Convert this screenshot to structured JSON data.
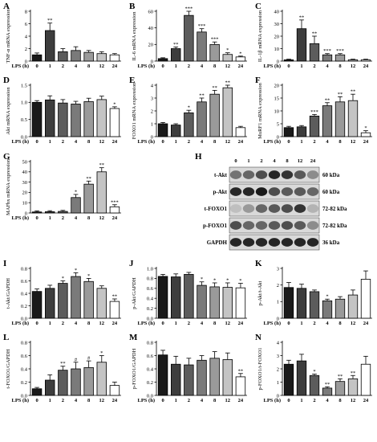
{
  "figure": {
    "categories": [
      "0",
      "1",
      "2",
      "4",
      "8",
      "12",
      "24"
    ],
    "xlabel": "LPS (h)",
    "bar_colors": [
      "#1a1a1a",
      "#3d3d3d",
      "#5c5c5c",
      "#7a7a7a",
      "#9a9a9a",
      "#c4c4c4",
      "#ffffff"
    ]
  },
  "chart_data": [
    {
      "id": "A",
      "type": "bar",
      "ylabel": "TNF-α mRNA expression",
      "ylim": [
        0,
        8
      ],
      "yticks": [
        0,
        2,
        4,
        6,
        8
      ],
      "categories": [
        "0",
        "1",
        "2",
        "4",
        "8",
        "12",
        "24"
      ],
      "values": [
        1.0,
        4.9,
        1.5,
        1.7,
        1.4,
        1.2,
        1.0
      ],
      "errors": [
        0.3,
        1.2,
        0.5,
        0.6,
        0.3,
        0.3,
        0.2
      ],
      "sig": [
        "",
        "**",
        "",
        "",
        "",
        "",
        ""
      ]
    },
    {
      "id": "B",
      "type": "bar",
      "ylabel": "IL-6 mRNA expression",
      "ylim": [
        0,
        60
      ],
      "yticks": [
        0,
        20,
        40,
        60
      ],
      "categories": [
        "0",
        "1",
        "2",
        "4",
        "8",
        "12",
        "24"
      ],
      "values": [
        3,
        15,
        55,
        35,
        20,
        8,
        5
      ],
      "errors": [
        1,
        2,
        5,
        4,
        3,
        2,
        1
      ],
      "sig": [
        "",
        "**",
        "***",
        "***",
        "***",
        "*",
        "*"
      ]
    },
    {
      "id": "C",
      "type": "bar",
      "ylabel": "IL-1β mRNA expression",
      "ylim": [
        0,
        40
      ],
      "yticks": [
        0,
        10,
        20,
        30,
        40
      ],
      "categories": [
        "0",
        "1",
        "2",
        "4",
        "8",
        "12",
        "24"
      ],
      "values": [
        1,
        26,
        14,
        5,
        5,
        1,
        1
      ],
      "errors": [
        0.5,
        7,
        6,
        1,
        1,
        0.5,
        0.5
      ],
      "sig": [
        "",
        "**",
        "**",
        "***",
        "***",
        "",
        ""
      ]
    },
    {
      "id": "D",
      "type": "bar",
      "ylabel": "Akt mRNA expression",
      "ylim": [
        0,
        1.5
      ],
      "yticks": [
        0.0,
        0.5,
        1.0,
        1.5
      ],
      "categories": [
        "0",
        "1",
        "2",
        "4",
        "8",
        "12",
        "24"
      ],
      "values": [
        1.0,
        1.07,
        0.98,
        0.95,
        1.02,
        1.08,
        0.82
      ],
      "errors": [
        0.05,
        0.12,
        0.1,
        0.08,
        0.1,
        0.1,
        0.05
      ],
      "sig": [
        "",
        "",
        "",
        "",
        "",
        "",
        "*"
      ]
    },
    {
      "id": "E",
      "type": "bar",
      "ylabel": "FOXO1 mRNA expression",
      "ylim": [
        0,
        4
      ],
      "yticks": [
        0,
        1,
        2,
        3,
        4
      ],
      "categories": [
        "0",
        "1",
        "2",
        "4",
        "8",
        "12",
        "24"
      ],
      "values": [
        1.0,
        0.9,
        1.85,
        2.7,
        3.3,
        3.8,
        0.7
      ],
      "errors": [
        0.1,
        0.1,
        0.2,
        0.3,
        0.3,
        0.2,
        0.1
      ],
      "sig": [
        "",
        "",
        "*",
        "**",
        "**",
        "**",
        ""
      ]
    },
    {
      "id": "F",
      "type": "bar",
      "ylabel": "MuRF1 mRNA expression",
      "ylim": [
        0,
        20
      ],
      "yticks": [
        0,
        5,
        10,
        15,
        20
      ],
      "categories": [
        "0",
        "1",
        "2",
        "4",
        "8",
        "12",
        "24"
      ],
      "values": [
        3.5,
        3.8,
        8,
        12,
        13.5,
        14,
        1.5
      ],
      "errors": [
        0.5,
        0.5,
        0.6,
        1.2,
        2,
        2.5,
        0.8
      ],
      "sig": [
        "",
        "",
        "***",
        "**",
        "**",
        "**",
        "*"
      ]
    },
    {
      "id": "G",
      "type": "bar",
      "ylabel": "MAFbx mRNA expression",
      "ylim": [
        0,
        50
      ],
      "yticks": [
        0,
        10,
        20,
        30,
        40,
        50
      ],
      "categories": [
        "0",
        "1",
        "2",
        "4",
        "8",
        "12",
        "24"
      ],
      "values": [
        1,
        1.2,
        1.5,
        15,
        28,
        40,
        6
      ],
      "errors": [
        1,
        1,
        1,
        3,
        3,
        4,
        2
      ],
      "sig": [
        "",
        "",
        "",
        "*",
        "**",
        "**",
        "***"
      ]
    },
    {
      "id": "I",
      "type": "bar",
      "ylabel": "t-Akt/GAPDH",
      "ylim": [
        0,
        0.8
      ],
      "yticks": [
        0.0,
        0.2,
        0.4,
        0.6,
        0.8
      ],
      "categories": [
        "0",
        "1",
        "2",
        "4",
        "8",
        "12",
        "24"
      ],
      "values": [
        0.43,
        0.48,
        0.56,
        0.67,
        0.59,
        0.48,
        0.27
      ],
      "errors": [
        0.04,
        0.05,
        0.04,
        0.06,
        0.05,
        0.04,
        0.04
      ],
      "sig": [
        "",
        "",
        "*",
        "*",
        "*",
        "",
        "**"
      ]
    },
    {
      "id": "J",
      "type": "bar",
      "ylabel": "p-Akt/GAPDH",
      "ylim": [
        0,
        1.0
      ],
      "yticks": [
        0.0,
        0.2,
        0.4,
        0.6,
        0.8,
        1.0
      ],
      "categories": [
        "0",
        "1",
        "2",
        "4",
        "8",
        "12",
        "24"
      ],
      "values": [
        0.84,
        0.83,
        0.88,
        0.66,
        0.63,
        0.62,
        0.61
      ],
      "errors": [
        0.04,
        0.06,
        0.04,
        0.07,
        0.08,
        0.09,
        0.09
      ],
      "sig": [
        "",
        "",
        "",
        "*",
        "*",
        "*",
        "*"
      ]
    },
    {
      "id": "K",
      "type": "bar",
      "ylabel": "p-Akt/t-Akt",
      "ylim": [
        0,
        3
      ],
      "yticks": [
        0,
        1,
        2,
        3
      ],
      "categories": [
        "0",
        "1",
        "2",
        "4",
        "8",
        "12",
        "24"
      ],
      "values": [
        1.85,
        1.8,
        1.6,
        1.05,
        1.15,
        1.4,
        2.35
      ],
      "errors": [
        0.3,
        0.25,
        0.1,
        0.1,
        0.15,
        0.3,
        0.5
      ],
      "sig": [
        "",
        "",
        "",
        "*",
        "",
        "",
        ""
      ]
    },
    {
      "id": "L",
      "type": "bar",
      "ylabel": "t-FOXO1/GAPDH",
      "ylim": [
        0,
        0.8
      ],
      "yticks": [
        0.0,
        0.2,
        0.4,
        0.6,
        0.8
      ],
      "categories": [
        "0",
        "1",
        "2",
        "4",
        "8",
        "12",
        "24"
      ],
      "values": [
        0.1,
        0.23,
        0.38,
        0.4,
        0.42,
        0.5,
        0.15
      ],
      "errors": [
        0.02,
        0.08,
        0.06,
        0.1,
        0.1,
        0.1,
        0.05
      ],
      "sig": [
        "",
        "",
        "**",
        "#",
        "#",
        "*",
        ""
      ]
    },
    {
      "id": "M",
      "type": "bar",
      "ylabel": "p-FOXO1/GAPDH",
      "ylim": [
        0,
        0.8
      ],
      "yticks": [
        0.0,
        0.2,
        0.4,
        0.6,
        0.8
      ],
      "categories": [
        "0",
        "1",
        "2",
        "4",
        "8",
        "12",
        "24"
      ],
      "values": [
        0.61,
        0.47,
        0.46,
        0.53,
        0.56,
        0.54,
        0.28
      ],
      "errors": [
        0.07,
        0.12,
        0.1,
        0.07,
        0.1,
        0.1,
        0.05
      ],
      "sig": [
        "",
        "",
        "",
        "",
        "",
        "",
        "**"
      ]
    },
    {
      "id": "N",
      "type": "bar",
      "ylabel": "p-FOXO1/t-FOXO1",
      "ylim": [
        0,
        4
      ],
      "yticks": [
        0,
        1,
        2,
        3,
        4
      ],
      "categories": [
        "0",
        "1",
        "2",
        "4",
        "8",
        "12",
        "24"
      ],
      "values": [
        2.35,
        2.6,
        1.5,
        0.55,
        1.05,
        1.25,
        2.35
      ],
      "errors": [
        0.3,
        0.5,
        0.1,
        0.1,
        0.2,
        0.25,
        0.6
      ],
      "sig": [
        "",
        "",
        "*",
        "**",
        "**",
        "**",
        ""
      ]
    }
  ],
  "blot": {
    "letter": "H",
    "lane_labels": [
      "0",
      "1",
      "2",
      "4",
      "8",
      "12",
      "24"
    ],
    "rows": [
      {
        "protein": "t-Akt",
        "size": "60 kDa"
      },
      {
        "protein": "p-Akt",
        "size": "60 kDa"
      },
      {
        "protein": "t-FOXO1",
        "size": "72-82 kDa"
      },
      {
        "protein": "p-FOXO1",
        "size": "72-82 kDa"
      },
      {
        "protein": "GAPDH",
        "size": "36 kDa"
      }
    ]
  }
}
